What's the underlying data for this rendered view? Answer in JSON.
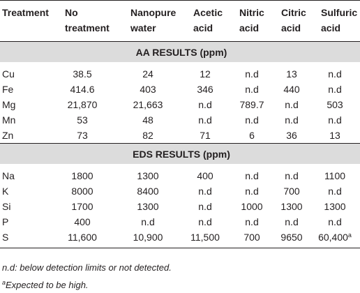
{
  "table": {
    "header": [
      "Treatment",
      "No treatment",
      "Nanopure water",
      "Acetic acid",
      "Nitric acid",
      "Citric acid",
      "Sulfuric acid"
    ],
    "sections": [
      {
        "title": "AA RESULTS (ppm)",
        "rows": [
          [
            "Cu",
            "38.5",
            "24",
            "12",
            "n.d",
            "13",
            "n.d"
          ],
          [
            "Fe",
            "414.6",
            "403",
            "346",
            "n.d",
            "440",
            "n.d"
          ],
          [
            "Mg",
            "21,870",
            "21,663",
            "n.d",
            "789.7",
            "n.d",
            "503"
          ],
          [
            "Mn",
            "53",
            "48",
            "n.d",
            "n.d",
            "n.d",
            "n.d"
          ],
          [
            "Zn",
            "73",
            "82",
            "71",
            "6",
            "36",
            "13"
          ]
        ]
      },
      {
        "title": "EDS RESULTS (ppm)",
        "rows": [
          [
            "Na",
            "1800",
            "1300",
            "400",
            "n.d",
            "n.d",
            "1100"
          ],
          [
            "K",
            "8000",
            "8400",
            "n.d",
            "n.d",
            "700",
            "n.d"
          ],
          [
            "Si",
            "1700",
            "1300",
            "n.d",
            "1000",
            "1300",
            "1300"
          ],
          [
            "P",
            "400",
            "n.d",
            "n.d",
            "n.d",
            "n.d",
            "n.d"
          ],
          [
            "S",
            "11,600",
            "10,900",
            "11,500",
            "700",
            "9650",
            {
              "text": "60,400",
              "sup": "a"
            }
          ]
        ]
      }
    ]
  },
  "footnotes": [
    {
      "text": "n.d: below detection limits or not detected."
    },
    {
      "sup": "a",
      "text": "Expected to be high."
    }
  ]
}
